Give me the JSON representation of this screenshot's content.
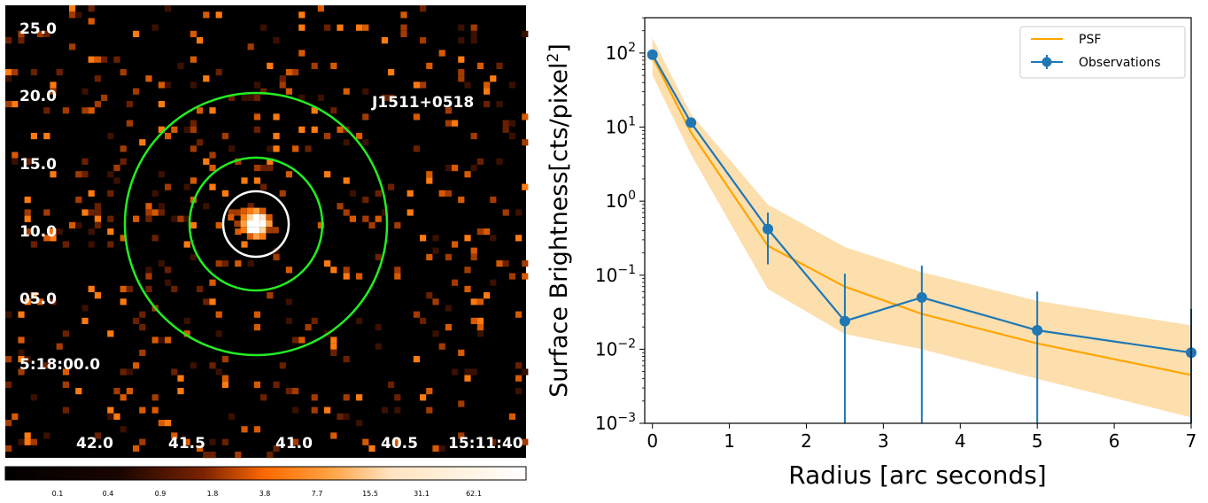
{
  "image_panel": {
    "source_label": "J1511+0518",
    "dec_labels": [
      "25.0",
      "20.0",
      "15.0",
      "10.0",
      "05.0",
      "5:18:00.0"
    ],
    "ra_labels": [
      "42.0",
      "41.5",
      "41.0",
      "40.5",
      "15:11:40"
    ],
    "colorbar_ticks": [
      "0.1",
      "0.4",
      "0.9",
      "1.8",
      "3.8",
      "7.7",
      "15.5",
      "31.1",
      "62.1"
    ],
    "colors": {
      "inner_aperture": "#ffffff",
      "background_annulus": "#22ee22"
    }
  },
  "chart_data": {
    "type": "line",
    "xlabel": "Radius [arc seconds]",
    "ylabel": "Surface Brightness[cts/pixel2]",
    "xlim": [
      -0.1,
      7
    ],
    "ylim": [
      0.001,
      300
    ],
    "yscale": "log",
    "x_ticks": [
      "0",
      "1",
      "2",
      "3",
      "4",
      "5",
      "6",
      "7"
    ],
    "y_ticks": [
      {
        "base": "10",
        "exp": "2"
      },
      {
        "base": "10",
        "exp": "1"
      },
      {
        "base": "10",
        "exp": "0"
      },
      {
        "base": "10",
        "exp": "−1"
      },
      {
        "base": "10",
        "exp": "−2"
      },
      {
        "base": "10",
        "exp": "−3"
      }
    ],
    "legend": {
      "position": "top-right",
      "entries": [
        "PSF",
        "Observations"
      ]
    },
    "series": [
      {
        "name": "PSF",
        "color": "#ffa500",
        "band_color": "#fdd9a0",
        "x": [
          0,
          0.5,
          1.5,
          2.5,
          3.5,
          5,
          7
        ],
        "y": [
          90,
          8.5,
          0.25,
          0.07,
          0.03,
          0.012,
          0.0045
        ],
        "lo": [
          50,
          4.3,
          0.065,
          0.016,
          0.01,
          0.004,
          0.0012
        ],
        "hi": [
          160,
          15,
          0.9,
          0.24,
          0.11,
          0.045,
          0.021
        ]
      },
      {
        "name": "Observations",
        "color": "#1f77b4",
        "x": [
          0,
          0.5,
          1.5,
          2.5,
          3.5,
          5,
          7
        ],
        "y": [
          95,
          11.5,
          0.42,
          0.024,
          0.05,
          0.018,
          0.009
        ],
        "lo": [
          90,
          10.5,
          0.14,
          0.001,
          0.001,
          0.001,
          0.001
        ],
        "hi": [
          100,
          12.5,
          0.7,
          0.105,
          0.135,
          0.06,
          0.035
        ]
      }
    ]
  }
}
